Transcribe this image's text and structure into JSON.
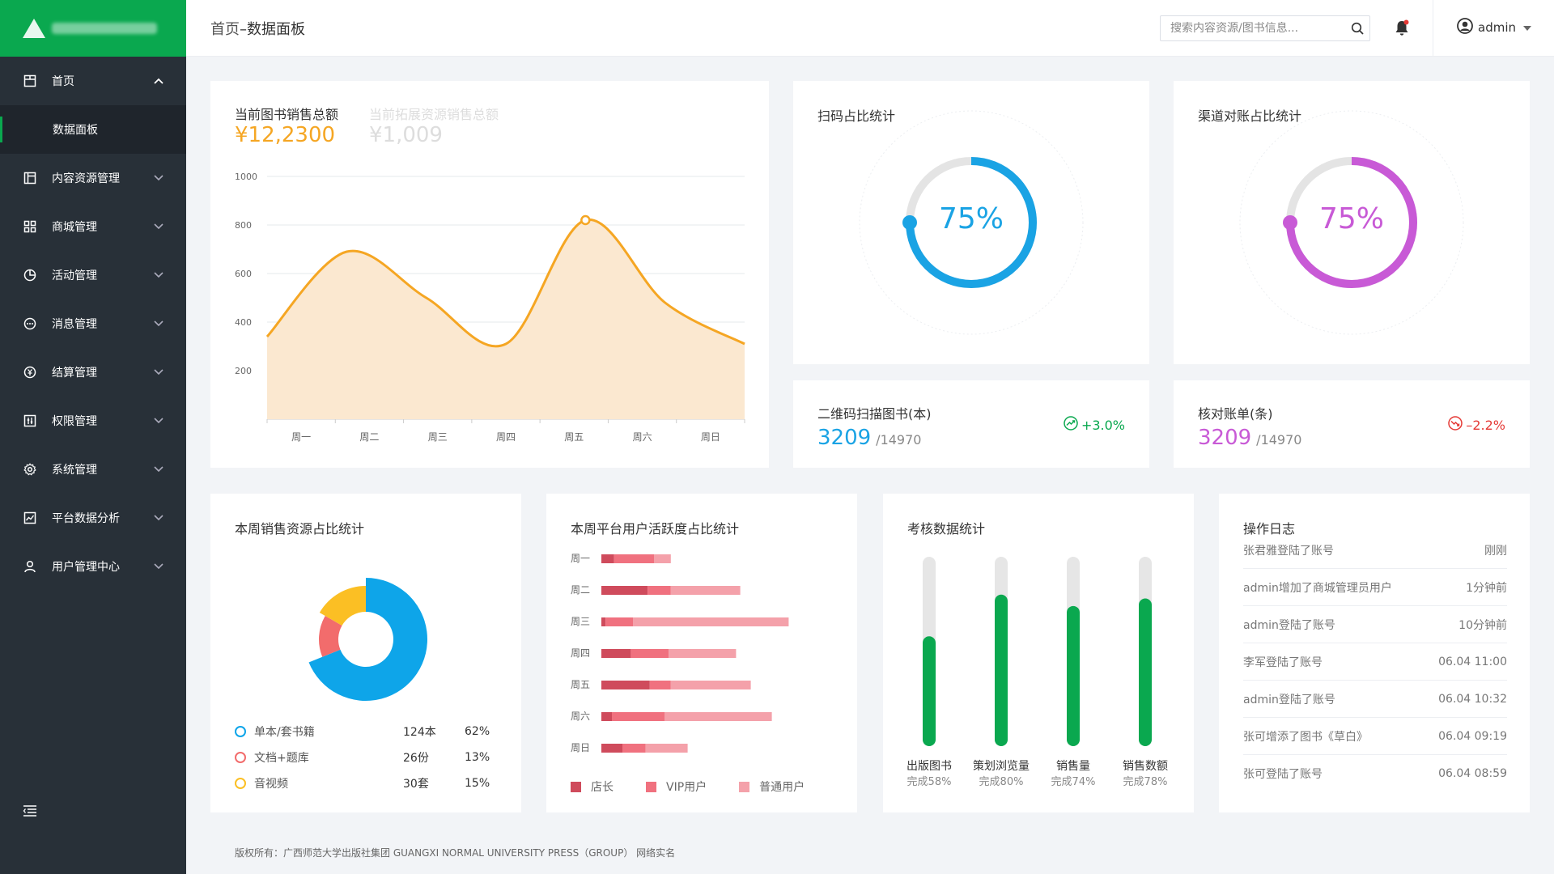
{
  "sidebar": {
    "items": [
      {
        "label": "首页",
        "icon": "layout-icon",
        "open": true
      },
      {
        "label": "内容资源管理",
        "icon": "panel-icon"
      },
      {
        "label": "商城管理",
        "icon": "grid-icon"
      },
      {
        "label": "活动管理",
        "icon": "pie-icon"
      },
      {
        "label": "消息管理",
        "icon": "message-icon"
      },
      {
        "label": "结算管理",
        "icon": "currency-icon"
      },
      {
        "label": "权限管理",
        "icon": "key-icon"
      },
      {
        "label": "系统管理",
        "icon": "gear-icon"
      },
      {
        "label": "平台数据分析",
        "icon": "trend-icon"
      },
      {
        "label": "用户管理中心",
        "icon": "user-icon"
      }
    ],
    "sub_item": "数据面板"
  },
  "header": {
    "crumb_home": "首页",
    "crumb_sep": "–",
    "crumb_page": "数据面板",
    "search_placeholder": "搜索内容资源/图书信息...",
    "user": "admin"
  },
  "sales": {
    "tab_active": "当前图书销售总额",
    "tab_inactive": "当前拓展资源销售总额",
    "value_active": "¥12,2300",
    "value_inactive": "¥1,009"
  },
  "scan": {
    "title": "扫码占比统计",
    "percent": "75%",
    "value": 0.75
  },
  "channel": {
    "title": "渠道对账占比统计",
    "percent": "75%",
    "value": 0.75
  },
  "qr_stat": {
    "title": "二维码扫描图书(本)",
    "value": "3209",
    "total": "/14970",
    "trend": "+3.0%"
  },
  "bill_stat": {
    "title": "核对账单(条)",
    "value": "3209",
    "total": "/14970",
    "trend": "–2.2%"
  },
  "resource": {
    "title": "本周销售资源占比统计",
    "rows": [
      {
        "name": "单本/套书籍",
        "count": "124本",
        "pct": "62%",
        "color": "#0ea5e9"
      },
      {
        "name": "文档+题库",
        "count": "26份",
        "pct": "13%",
        "color": "#f26c6c"
      },
      {
        "name": "音视频",
        "count": "30套",
        "pct": "15%",
        "color": "#fbbf24"
      }
    ]
  },
  "activity": {
    "title": "本周平台用户活跃度占比统计",
    "legend": [
      "店长",
      "VIP用户",
      "普通用户"
    ]
  },
  "assess": {
    "title": "考核数据统计",
    "items": [
      {
        "name": "出版图书",
        "done": "完成58%",
        "value": 58
      },
      {
        "name": "策划浏览量",
        "done": "完成80%",
        "value": 80
      },
      {
        "name": "销售量",
        "done": "完成74%",
        "value": 74
      },
      {
        "name": "销售数额",
        "done": "完成78%",
        "value": 78
      }
    ]
  },
  "log": {
    "title": "操作日志",
    "rows": [
      {
        "text": "张君雅登陆了账号",
        "time": "刚刚"
      },
      {
        "text": "admin增加了商城管理员用户",
        "time": "1分钟前"
      },
      {
        "text": "admin登陆了账号",
        "time": "10分钟前"
      },
      {
        "text": "李军登陆了账号",
        "time": "06.04 11:00"
      },
      {
        "text": "admin登陆了账号",
        "time": "06.04 10:32"
      },
      {
        "text": "张可增添了图书《草白》",
        "time": "06.04 09:19"
      },
      {
        "text": "张可登陆了账号",
        "time": "06.04 08:59"
      }
    ]
  },
  "footer": "版权所有：广西师范大学出版社集团 GUANGXI NORMAL UNIVERSITY PRESS（GROUP） 网络实名",
  "chart_data": [
    {
      "type": "area",
      "categories": [
        "周一",
        "周二",
        "周三",
        "周四",
        "周五",
        "周六",
        "周日"
      ],
      "values": [
        340,
        690,
        500,
        310,
        820,
        480,
        310
      ],
      "ylim": [
        0,
        1000
      ],
      "yticks": [
        200,
        400,
        600,
        800,
        1000
      ],
      "colors": {
        "line": "#f5a623",
        "fill": "#fbe8d0"
      }
    },
    {
      "type": "pie",
      "labels": [
        "单本/套书籍",
        "文档+题库",
        "音视频"
      ],
      "values": [
        62,
        13,
        15
      ],
      "colors": [
        "#0ea5e9",
        "#f26c6c",
        "#fbbf24"
      ]
    },
    {
      "type": "bar",
      "orientation": "horizontal",
      "stacked": true,
      "categories": [
        "周一",
        "周二",
        "周三",
        "周四",
        "周五",
        "周六",
        "周日"
      ],
      "series": [
        {
          "name": "店长",
          "values": [
            6,
            22,
            2,
            14,
            23,
            5,
            10
          ],
          "color": "#cf4b5c"
        },
        {
          "name": "VIP用户",
          "values": [
            19,
            11,
            13,
            18,
            10,
            25,
            11
          ],
          "color": "#f0717f"
        },
        {
          "name": "普通用户",
          "values": [
            8,
            33,
            74,
            32,
            38,
            51,
            20
          ],
          "color": "#f4a1aa"
        }
      ]
    }
  ]
}
